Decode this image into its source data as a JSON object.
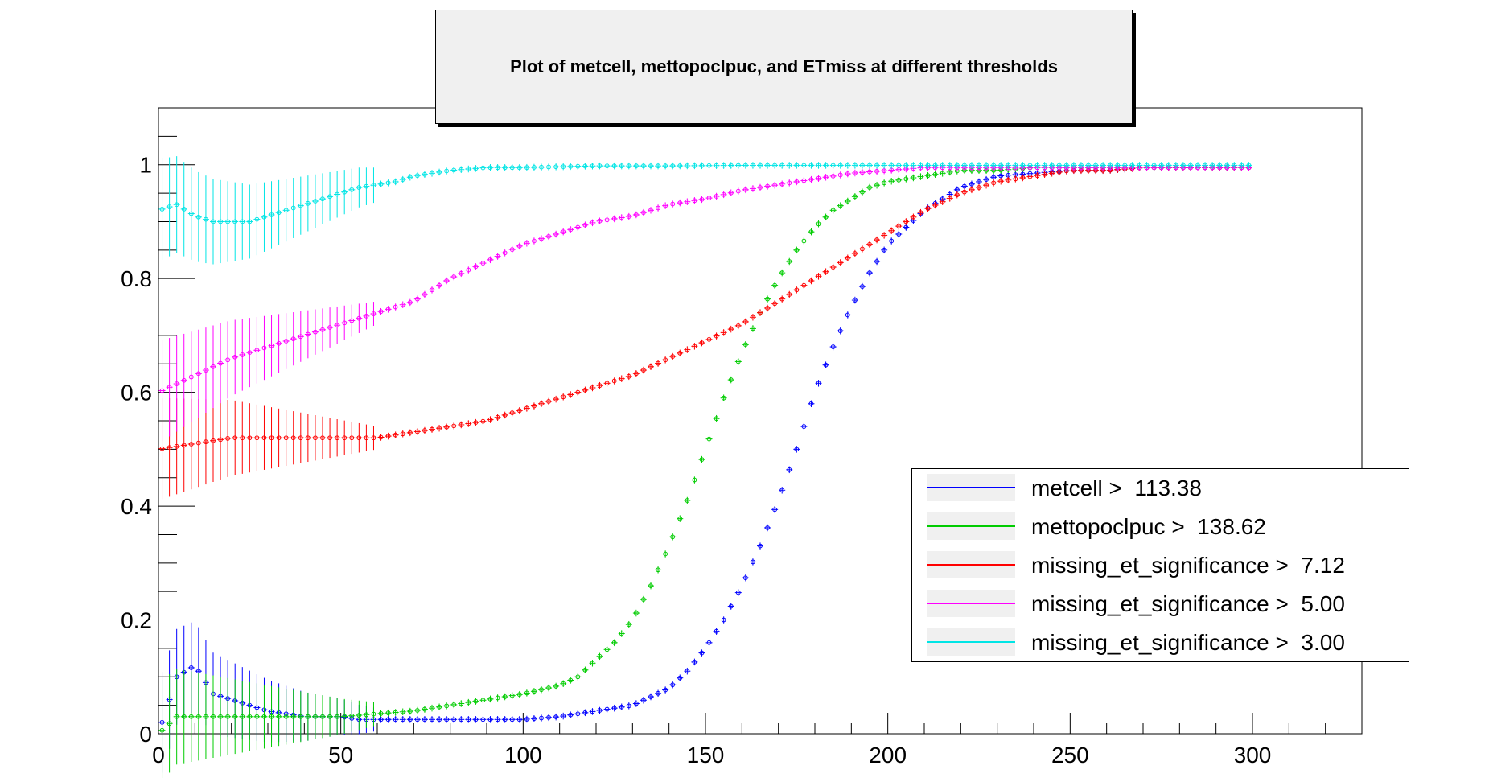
{
  "chart_data": {
    "type": "scatter",
    "title": "Plot of metcell, mettopoclpuc, and ETmiss at different thresholds",
    "xlabel": "",
    "ylabel": "",
    "xlim": [
      0,
      330
    ],
    "ylim": [
      0,
      1.1
    ],
    "x_ticks": [
      "0",
      "50",
      "100",
      "150",
      "200",
      "250",
      "300"
    ],
    "y_ticks": [
      "0",
      "0.2",
      "0.4",
      "0.6",
      "0.8",
      "1"
    ],
    "legend_placement": "bottom-right",
    "grid": false,
    "series": [
      {
        "name": "metcell >  113.38",
        "color": "#0000ff",
        "key": "metcell",
        "points": [
          [
            0,
            0.0
          ],
          [
            5,
            0.1
          ],
          [
            10,
            0.12
          ],
          [
            15,
            0.07
          ],
          [
            20,
            0.06
          ],
          [
            25,
            0.05
          ],
          [
            30,
            0.04
          ],
          [
            35,
            0.035
          ],
          [
            40,
            0.03
          ],
          [
            45,
            0.03
          ],
          [
            50,
            0.03
          ],
          [
            55,
            0.025
          ],
          [
            60,
            0.025
          ],
          [
            70,
            0.025
          ],
          [
            80,
            0.025
          ],
          [
            90,
            0.025
          ],
          [
            100,
            0.025
          ],
          [
            110,
            0.03
          ],
          [
            120,
            0.04
          ],
          [
            130,
            0.05
          ],
          [
            140,
            0.08
          ],
          [
            145,
            0.11
          ],
          [
            150,
            0.15
          ],
          [
            155,
            0.2
          ],
          [
            160,
            0.26
          ],
          [
            165,
            0.33
          ],
          [
            170,
            0.41
          ],
          [
            175,
            0.5
          ],
          [
            180,
            0.6
          ],
          [
            185,
            0.68
          ],
          [
            190,
            0.75
          ],
          [
            195,
            0.81
          ],
          [
            200,
            0.86
          ],
          [
            205,
            0.89
          ],
          [
            210,
            0.92
          ],
          [
            215,
            0.94
          ],
          [
            220,
            0.96
          ],
          [
            225,
            0.97
          ],
          [
            230,
            0.98
          ],
          [
            240,
            0.985
          ],
          [
            250,
            0.99
          ],
          [
            260,
            0.99
          ],
          [
            270,
            0.995
          ],
          [
            280,
            0.995
          ],
          [
            290,
            0.995
          ],
          [
            300,
            0.995
          ]
        ]
      },
      {
        "name": "mettopoclpuc >  138.62",
        "color": "#00cc00",
        "key": "mettopoclpuc",
        "points": [
          [
            0,
            0.0
          ],
          [
            5,
            0.03
          ],
          [
            10,
            0.03
          ],
          [
            15,
            0.03
          ],
          [
            20,
            0.03
          ],
          [
            25,
            0.03
          ],
          [
            30,
            0.03
          ],
          [
            35,
            0.03
          ],
          [
            40,
            0.03
          ],
          [
            50,
            0.03
          ],
          [
            60,
            0.035
          ],
          [
            70,
            0.04
          ],
          [
            80,
            0.05
          ],
          [
            90,
            0.06
          ],
          [
            100,
            0.07
          ],
          [
            110,
            0.085
          ],
          [
            115,
            0.1
          ],
          [
            120,
            0.13
          ],
          [
            125,
            0.16
          ],
          [
            130,
            0.2
          ],
          [
            135,
            0.26
          ],
          [
            140,
            0.33
          ],
          [
            145,
            0.41
          ],
          [
            150,
            0.5
          ],
          [
            155,
            0.59
          ],
          [
            160,
            0.67
          ],
          [
            165,
            0.74
          ],
          [
            170,
            0.8
          ],
          [
            175,
            0.85
          ],
          [
            180,
            0.89
          ],
          [
            185,
            0.92
          ],
          [
            190,
            0.94
          ],
          [
            195,
            0.96
          ],
          [
            200,
            0.97
          ],
          [
            210,
            0.98
          ],
          [
            220,
            0.99
          ],
          [
            230,
            0.99
          ],
          [
            240,
            0.995
          ],
          [
            250,
            0.995
          ],
          [
            260,
            0.995
          ],
          [
            270,
            0.995
          ],
          [
            280,
            0.995
          ],
          [
            290,
            0.995
          ],
          [
            300,
            0.995
          ]
        ]
      },
      {
        "name": "missing_et_significance >  7.12",
        "color": "#ff0000",
        "key": "missing_et_significance_712",
        "points": [
          [
            0,
            0.5
          ],
          [
            10,
            0.51
          ],
          [
            20,
            0.52
          ],
          [
            30,
            0.52
          ],
          [
            40,
            0.52
          ],
          [
            50,
            0.52
          ],
          [
            60,
            0.52
          ],
          [
            70,
            0.53
          ],
          [
            80,
            0.54
          ],
          [
            90,
            0.55
          ],
          [
            100,
            0.57
          ],
          [
            110,
            0.59
          ],
          [
            120,
            0.61
          ],
          [
            130,
            0.63
          ],
          [
            140,
            0.66
          ],
          [
            150,
            0.69
          ],
          [
            160,
            0.72
          ],
          [
            170,
            0.76
          ],
          [
            180,
            0.8
          ],
          [
            190,
            0.84
          ],
          [
            200,
            0.88
          ],
          [
            210,
            0.92
          ],
          [
            220,
            0.95
          ],
          [
            230,
            0.97
          ],
          [
            240,
            0.98
          ],
          [
            250,
            0.99
          ],
          [
            260,
            0.99
          ],
          [
            270,
            0.995
          ],
          [
            280,
            0.995
          ],
          [
            290,
            0.995
          ],
          [
            300,
            0.995
          ]
        ]
      },
      {
        "name": "missing_et_significance >  5.00",
        "color": "#ff00ff",
        "key": "missing_et_significance_500",
        "points": [
          [
            0,
            0.6
          ],
          [
            10,
            0.63
          ],
          [
            20,
            0.66
          ],
          [
            30,
            0.68
          ],
          [
            40,
            0.7
          ],
          [
            50,
            0.72
          ],
          [
            60,
            0.74
          ],
          [
            70,
            0.76
          ],
          [
            80,
            0.8
          ],
          [
            90,
            0.83
          ],
          [
            100,
            0.86
          ],
          [
            110,
            0.88
          ],
          [
            120,
            0.9
          ],
          [
            130,
            0.91
          ],
          [
            140,
            0.93
          ],
          [
            150,
            0.94
          ],
          [
            160,
            0.955
          ],
          [
            170,
            0.965
          ],
          [
            180,
            0.975
          ],
          [
            190,
            0.985
          ],
          [
            200,
            0.99
          ],
          [
            210,
            0.995
          ],
          [
            220,
            0.995
          ],
          [
            230,
            0.995
          ],
          [
            240,
            0.995
          ],
          [
            250,
            0.995
          ],
          [
            260,
            0.995
          ],
          [
            270,
            0.995
          ],
          [
            280,
            0.995
          ],
          [
            290,
            0.995
          ],
          [
            300,
            0.995
          ]
        ]
      },
      {
        "name": "missing_et_significance >  3.00",
        "color": "#00e5e5",
        "key": "missing_et_significance_300",
        "points": [
          [
            0,
            0.92
          ],
          [
            5,
            0.93
          ],
          [
            10,
            0.91
          ],
          [
            15,
            0.9
          ],
          [
            20,
            0.9
          ],
          [
            25,
            0.9
          ],
          [
            30,
            0.91
          ],
          [
            35,
            0.92
          ],
          [
            40,
            0.93
          ],
          [
            45,
            0.94
          ],
          [
            50,
            0.95
          ],
          [
            55,
            0.96
          ],
          [
            60,
            0.965
          ],
          [
            65,
            0.97
          ],
          [
            70,
            0.98
          ],
          [
            80,
            0.99
          ],
          [
            90,
            0.995
          ],
          [
            100,
            0.995
          ],
          [
            120,
            0.998
          ],
          [
            140,
            0.998
          ],
          [
            160,
            0.999
          ],
          [
            180,
            0.999
          ],
          [
            200,
            0.999
          ],
          [
            220,
            0.999
          ],
          [
            240,
            0.999
          ],
          [
            260,
            0.999
          ],
          [
            280,
            0.999
          ],
          [
            300,
            0.999
          ]
        ]
      }
    ]
  }
}
